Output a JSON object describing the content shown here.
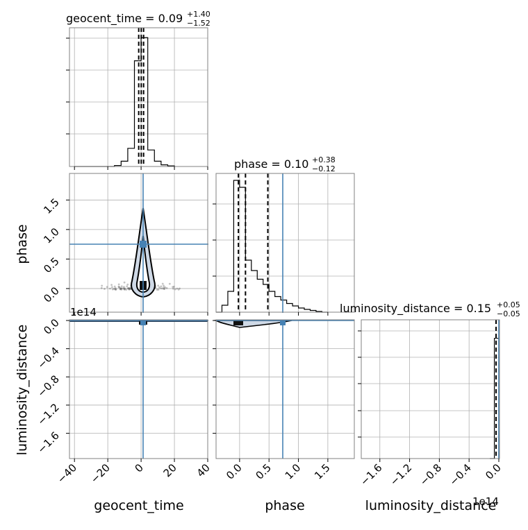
{
  "titles": {
    "geocent_time": {
      "text": "geocent_time = 0.09",
      "sup": "+1.40",
      "sub": "−1.52"
    },
    "phase": {
      "text": "phase = 0.10",
      "sup": "+0.38",
      "sub": "−0.12"
    },
    "luminosity_distance": {
      "text": "luminosity_distance = 0.15",
      "sup": "+0.05",
      "sub": "−0.05"
    }
  },
  "axis_labels": {
    "x": [
      "geocent_time",
      "phase",
      "luminosity_distance"
    ],
    "y": [
      "phase",
      "luminosity_distance"
    ]
  },
  "offsets": {
    "ld_y": "1e14",
    "ld_x": "1e14"
  },
  "colors": {
    "truth": "#4682b4",
    "hist": "#000000",
    "grid": "#b0b0b0"
  },
  "chart_data": {
    "type": "corner",
    "parameters": [
      "geocent_time",
      "phase",
      "luminosity_distance"
    ],
    "truths": {
      "geocent_time": 0.0,
      "phase": 0.7,
      "luminosity_distance": 0.0
    },
    "ranges": {
      "geocent_time": [
        -43,
        40
      ],
      "phase": [
        -0.4,
        1.95
      ],
      "luminosity_distance_1e14": [
        -1.85,
        0.0
      ]
    },
    "quantile_lines": {
      "geocent_time": [
        -1.43,
        0.09,
        1.49
      ],
      "phase": [
        -0.02,
        0.1,
        0.48
      ]
    },
    "ticks": {
      "geocent_time": [
        "−40",
        "−20",
        "0",
        "20",
        "40"
      ],
      "geocent_time_values": [
        -40,
        -20,
        0,
        20,
        40
      ],
      "phase": [
        "0.0",
        "0.5",
        "1.0",
        "1.5"
      ],
      "phase_values": [
        0.0,
        0.5,
        1.0,
        1.5
      ],
      "luminosity_distance": [
        "−1.6",
        "−1.2",
        "−0.8",
        "−0.4",
        "0.0"
      ],
      "luminosity_distance_values": [
        -1.6,
        -1.2,
        -0.8,
        -0.4,
        0.0
      ]
    },
    "histograms": {
      "geocent_time": {
        "bin_edges": [
          -40,
          -36,
          -32,
          -28,
          -24,
          -20,
          -16,
          -12,
          -8,
          -4,
          0,
          4,
          8,
          12,
          16,
          20
        ],
        "counts": [
          0,
          0,
          0,
          0,
          0,
          0,
          0.3,
          1.6,
          5.5,
          32,
          39,
          5.0,
          1.6,
          0.5,
          0.2
        ],
        "note_ymax": 42
      },
      "phase": {
        "bin_edges": [
          -0.4,
          -0.3,
          -0.2,
          -0.1,
          0.0,
          0.1,
          0.2,
          0.3,
          0.4,
          0.5,
          0.6,
          0.7,
          0.8,
          0.9,
          1.0,
          1.1,
          1.2,
          1.3,
          1.4,
          1.5
        ],
        "counts": [
          0,
          0.2,
          0.6,
          3.8,
          3.6,
          1.5,
          1.2,
          0.95,
          0.8,
          0.6,
          0.45,
          0.35,
          0.25,
          0.18,
          0.12,
          0.08,
          0.05,
          0.02,
          0
        ],
        "note_ymax": 4.0
      },
      "luminosity_distance": {
        "bin_edges": [
          -0.12,
          -0.06,
          -0.03,
          0.0
        ],
        "counts": [
          0,
          6.5,
          6.5
        ],
        "note_ymax": 7.5
      }
    },
    "grid": true
  }
}
